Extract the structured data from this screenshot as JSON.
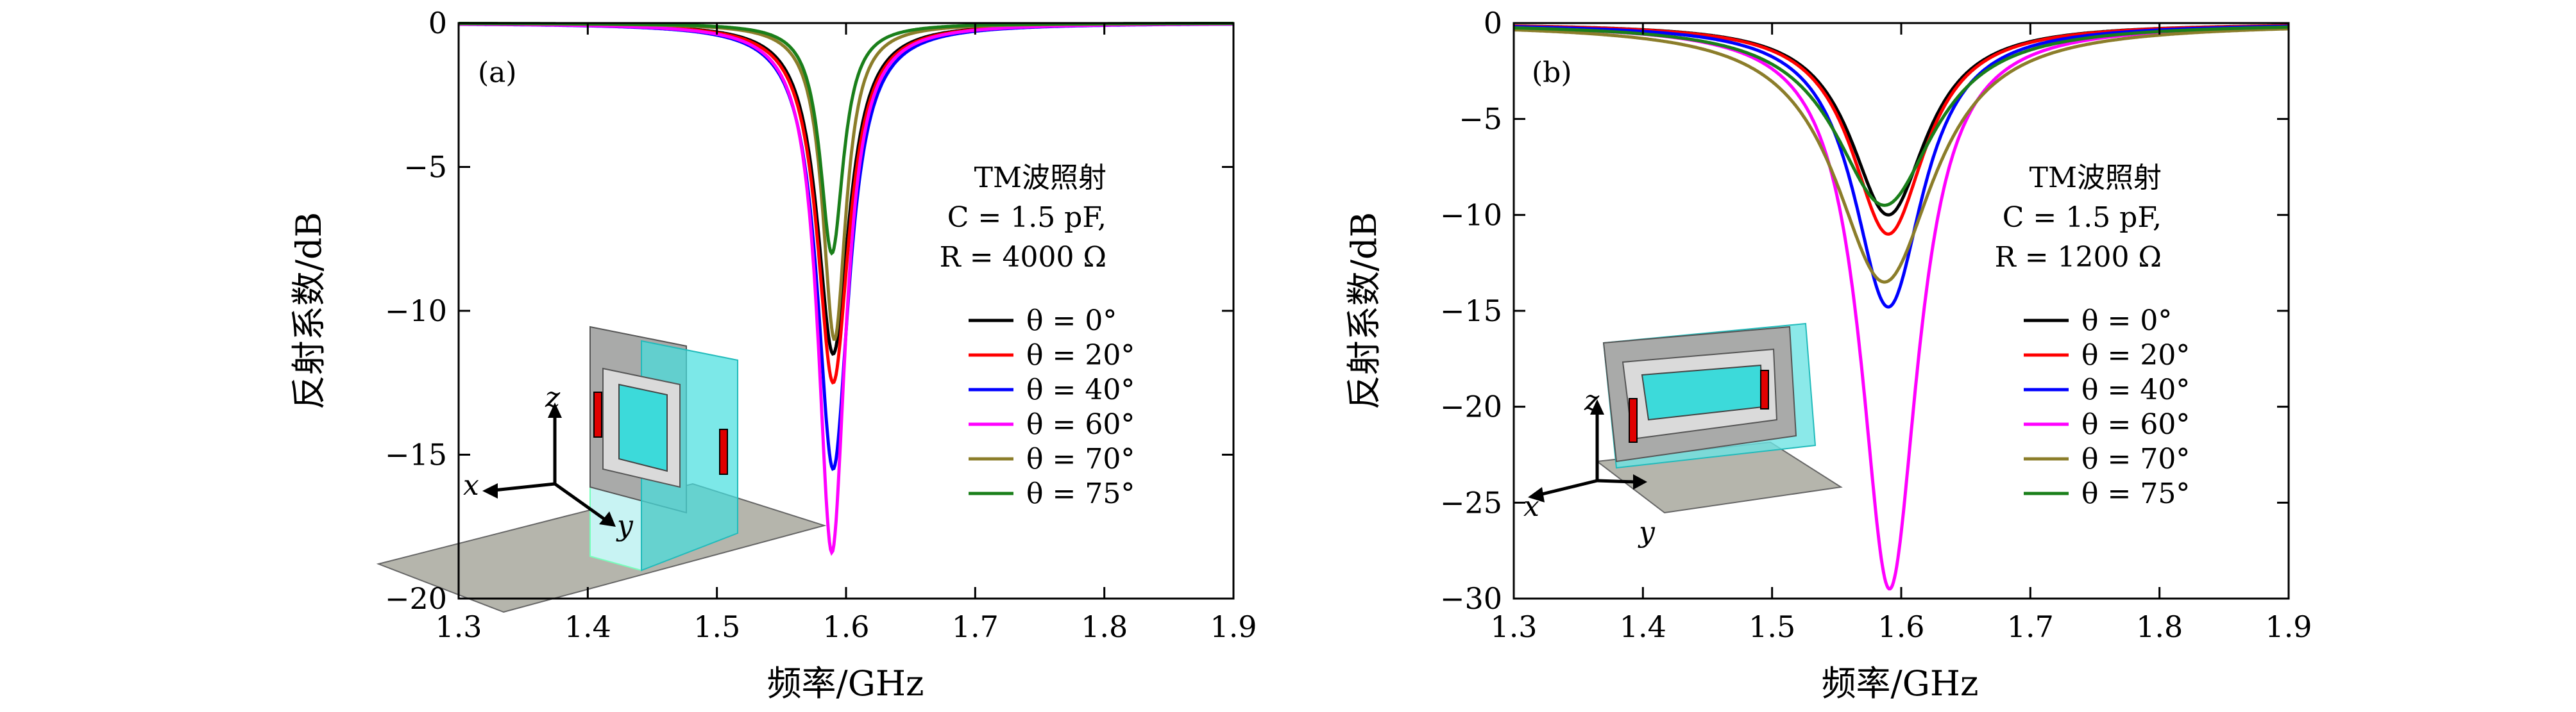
{
  "figure": {
    "panels": [
      {
        "label": "(a)",
        "ann": [
          "TM波照射",
          "C = 1.5 pF,",
          "R = 4000 Ω"
        ]
      },
      {
        "label": "(b)",
        "ann": [
          "TM波照射",
          "C = 1.5 pF,",
          "R = 1200 Ω"
        ]
      }
    ],
    "inset_axes": [
      "x",
      "y",
      "z"
    ]
  },
  "chart_data": [
    {
      "type": "line",
      "panel": "(a)",
      "xlabel": "频率/GHz",
      "ylabel": "反射系数/dB",
      "xlim": [
        1.3,
        1.9
      ],
      "ylim": [
        -20,
        0
      ],
      "xticks": [
        "1.3",
        "1.4",
        "1.5",
        "1.6",
        "1.7",
        "1.8",
        "1.9"
      ],
      "yticks": [
        "0",
        "−5",
        "−10",
        "−15",
        "−20"
      ],
      "grid": false,
      "legend_position": "right",
      "colors": [
        "#000000",
        "#ff0000",
        "#0000ff",
        "#ff00ff",
        "#8b7d2a",
        "#1a7f1a"
      ],
      "series": [
        {
          "name": "θ = 0°",
          "f0": 1.59,
          "min_db": -11.5,
          "width": 0.015
        },
        {
          "name": "θ = 20°",
          "f0": 1.59,
          "min_db": -12.5,
          "width": 0.015
        },
        {
          "name": "θ = 40°",
          "f0": 1.59,
          "min_db": -15.5,
          "width": 0.015
        },
        {
          "name": "θ = 60°",
          "f0": 1.589,
          "min_db": -18.4,
          "width": 0.013
        },
        {
          "name": "θ = 70°",
          "f0": 1.591,
          "min_db": -11.0,
          "width": 0.011
        },
        {
          "name": "θ = 75°",
          "f0": 1.589,
          "min_db": -8.0,
          "width": 0.011
        }
      ]
    },
    {
      "type": "line",
      "panel": "(b)",
      "xlabel": "频率/GHz",
      "ylabel": "反射系数/dB",
      "xlim": [
        1.3,
        1.9
      ],
      "ylim": [
        -30,
        0
      ],
      "xticks": [
        "1.3",
        "1.4",
        "1.5",
        "1.6",
        "1.7",
        "1.8",
        "1.9"
      ],
      "yticks": [
        "0",
        "−5",
        "−10",
        "−15",
        "−20",
        "−25",
        "−30"
      ],
      "grid": false,
      "legend_position": "right",
      "colors": [
        "#000000",
        "#ff0000",
        "#0000ff",
        "#ff00ff",
        "#8b7d2a",
        "#1a7f1a"
      ],
      "series": [
        {
          "name": "θ = 0°",
          "f0": 1.59,
          "min_db": -10.0,
          "width": 0.036
        },
        {
          "name": "θ = 20°",
          "f0": 1.59,
          "min_db": -11.0,
          "width": 0.035
        },
        {
          "name": "θ = 40°",
          "f0": 1.59,
          "min_db": -14.8,
          "width": 0.033
        },
        {
          "name": "θ = 60°",
          "f0": 1.591,
          "min_db": -29.5,
          "width": 0.027
        },
        {
          "name": "θ = 70°",
          "f0": 1.587,
          "min_db": -13.5,
          "width": 0.047
        },
        {
          "name": "θ = 75°",
          "f0": 1.587,
          "min_db": -9.5,
          "width": 0.047
        }
      ]
    }
  ]
}
